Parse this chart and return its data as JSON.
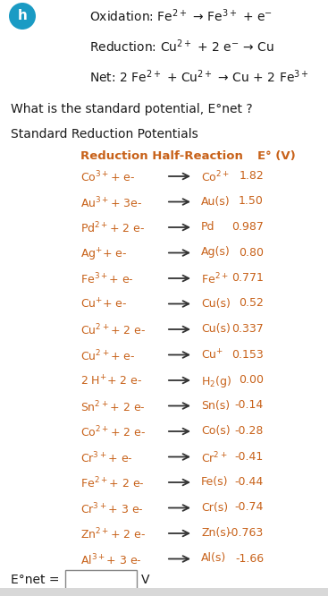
{
  "bg_color": "#ffffff",
  "circle_color": "#1a9bc4",
  "circle_text": "h",
  "row_text_color": "#c8621a",
  "black_text_color": "#1a1a1a",
  "arrow_color": "#333333",
  "bottom_bar_color": "#d8d8d8",
  "eq1": "Oxidation: Fe$^{2+}$ → Fe$^{3+}$ + e$^{-}$",
  "eq2": "Reduction: Cu$^{2+}$ + 2 e$^{-}$ → Cu",
  "eq3": "Net: 2 Fe$^{2+}$ + Cu$^{2+}$ → Cu + 2 Fe$^{3+}$",
  "question": "What is the standard potential, E°net ?",
  "table_title": "Standard Reduction Potentials",
  "table_rows": [
    {
      "left": "Co$^{3+}$+ e-",
      "right": "Co$^{2+}$",
      "val": "1.82"
    },
    {
      "left": "Au$^{3+}$+ 3e-",
      "right": "Au(s)",
      "val": "1.50"
    },
    {
      "left": "Pd$^{2+}$+ 2 e-",
      "right": "Pd",
      "val": "0.987"
    },
    {
      "left": "Ag$^{+}$+ e-",
      "right": "Ag(s)",
      "val": "0.80"
    },
    {
      "left": "Fe$^{3+}$+ e-",
      "right": "Fe$^{2+}$",
      "val": "0.771"
    },
    {
      "left": "Cu$^{+}$+ e-",
      "right": "Cu(s)",
      "val": "0.52"
    },
    {
      "left": "Cu$^{2+}$+ 2 e-",
      "right": "Cu(s)",
      "val": "0.337"
    },
    {
      "left": "Cu$^{2+}$+ e-",
      "right": "Cu$^{+}$",
      "val": "0.153"
    },
    {
      "left": "2 H$^{+}$+ 2 e-",
      "right": "H$_2$(g)",
      "val": "0.00"
    },
    {
      "left": "Sn$^{2+}$+ 2 e-",
      "right": "Sn(s)",
      "val": "-0.14"
    },
    {
      "left": "Co$^{2+}$+ 2 e-",
      "right": "Co(s)",
      "val": "-0.28"
    },
    {
      "left": "Cr$^{3+}$+ e-",
      "right": "Cr$^{2+}$",
      "val": "-0.41"
    },
    {
      "left": "Fe$^{2+}$+ 2 e-",
      "right": "Fe(s)",
      "val": "-0.44"
    },
    {
      "left": "Cr$^{3+}$+ 3 e-",
      "right": "Cr(s)",
      "val": "-0.74"
    },
    {
      "left": "Zn$^{2+}$+ 2 e-",
      "right": "Zn(s)",
      "val": "-0.763"
    },
    {
      "left": "Al$^{3+}$+ 3 e-",
      "right": "Al(s)",
      "val": "-1.66"
    }
  ],
  "figsize": [
    3.67,
    6.66
  ],
  "dpi": 100
}
